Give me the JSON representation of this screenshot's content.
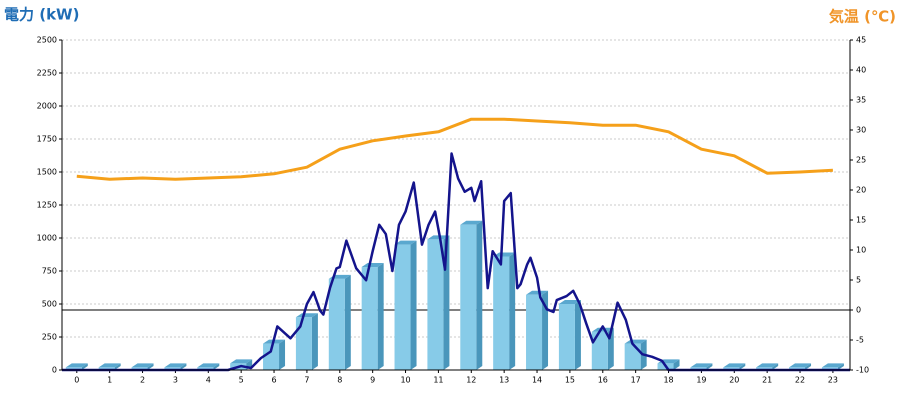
{
  "chart_data": {
    "type": "combo",
    "y_title": "電力 (kW)",
    "y2_title": "気温 (℃)",
    "x": [
      0,
      1,
      2,
      3,
      4,
      5,
      6,
      7,
      8,
      9,
      10,
      11,
      12,
      13,
      14,
      15,
      16,
      17,
      18,
      19,
      20,
      21,
      22,
      23
    ],
    "xlim": [
      -0.45,
      23.52
    ],
    "xticks": [
      0,
      1,
      2,
      3,
      4,
      5,
      6,
      7,
      8,
      9,
      10,
      11,
      12,
      13,
      14,
      15,
      16,
      17,
      18,
      19,
      20,
      21,
      22,
      23
    ],
    "ylim": [
      0,
      2500
    ],
    "yticks": [
      0,
      250,
      500,
      750,
      1000,
      1250,
      1500,
      1750,
      2000,
      2250,
      2500
    ],
    "y2lim": [
      -10,
      45
    ],
    "y2ticks": [
      -10,
      -5,
      0,
      5,
      10,
      15,
      20,
      25,
      30,
      35,
      40,
      45
    ],
    "grid": true,
    "series": [
      {
        "type": "bar",
        "color": "#87cbe8",
        "values": [
          20,
          20,
          20,
          20,
          20,
          50,
          200,
          400,
          690,
          780,
          950,
          990,
          1100,
          860,
          570,
          500,
          290,
          200,
          50,
          20,
          20,
          20,
          20,
          20
        ]
      },
      {
        "type": "line",
        "color": "#f5a01a",
        "axis": "y2",
        "values": [
          22.3,
          21.8,
          22,
          21.8,
          22,
          22.2,
          22.7,
          23.8,
          26.8,
          28.2,
          29,
          29.7,
          31.8,
          31.8,
          31.5,
          31.2,
          30.8,
          30.8,
          29.7,
          26.8,
          25.7,
          22.8,
          23,
          23.3
        ]
      },
      {
        "type": "line",
        "color": "#14148c",
        "x": [
          -0.45,
          4.6,
          5.0,
          5.3,
          5.6,
          5.9,
          6.1,
          6.5,
          6.8,
          7.0,
          7.2,
          7.4,
          7.5,
          7.7,
          7.9,
          8.0,
          8.2,
          8.5,
          8.8,
          9.0,
          9.2,
          9.4,
          9.6,
          9.8,
          10.0,
          10.25,
          10.5,
          10.7,
          10.9,
          11.05,
          11.2,
          11.4,
          11.6,
          11.8,
          12.0,
          12.1,
          12.3,
          12.5,
          12.65,
          12.9,
          13.0,
          13.2,
          13.4,
          13.5,
          13.7,
          13.8,
          14.0,
          14.1,
          14.3,
          14.5,
          14.6,
          14.9,
          15.1,
          15.3,
          15.5,
          15.7,
          15.8,
          16.0,
          16.2,
          16.45,
          16.7,
          16.9,
          17.2,
          17.5,
          17.8,
          18.0,
          23.52
        ],
        "values": [
          0,
          0,
          30,
          15,
          90,
          140,
          330,
          240,
          330,
          500,
          590,
          450,
          420,
          620,
          770,
          780,
          980,
          770,
          680,
          900,
          1100,
          1030,
          750,
          1100,
          1200,
          1420,
          950,
          1100,
          1200,
          1000,
          760,
          1640,
          1450,
          1350,
          1380,
          1280,
          1430,
          620,
          900,
          800,
          1280,
          1340,
          620,
          650,
          800,
          850,
          700,
          550,
          460,
          440,
          530,
          560,
          600,
          500,
          350,
          210,
          250,
          330,
          240,
          510,
          380,
          200,
          120,
          100,
          70,
          0,
          0
        ]
      }
    ]
  }
}
